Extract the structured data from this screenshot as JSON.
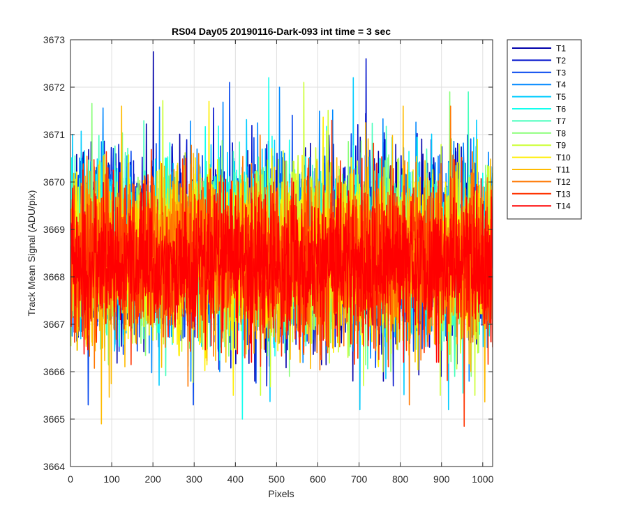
{
  "chart_data": {
    "type": "line",
    "title": "RS04 Day05 20190116-Dark-093 int time = 3 sec",
    "xlabel": "Pixels",
    "ylabel": "Track Mean Signal (ADU/pix)",
    "xlim": [
      0,
      1024
    ],
    "ylim": [
      3664,
      3673
    ],
    "xticks": [
      0,
      100,
      200,
      300,
      400,
      500,
      600,
      700,
      800,
      900,
      1000
    ],
    "yticks": [
      3664,
      3665,
      3666,
      3667,
      3668,
      3669,
      3670,
      3671,
      3672,
      3673
    ],
    "grid": true,
    "legend_position": "outside-top-right",
    "n_points": 1024,
    "series": [
      {
        "name": "T1",
        "color": "#0000aa",
        "mean": 3668.6,
        "std": 0.95,
        "max": 3672.75,
        "min": 3665.8
      },
      {
        "name": "T2",
        "color": "#0011cc",
        "mean": 3668.6,
        "std": 0.95,
        "max": 3672.6,
        "min": 3665.7
      },
      {
        "name": "T3",
        "color": "#0044ee",
        "mean": 3668.6,
        "std": 0.9,
        "max": 3672.1,
        "min": 3665.3
      },
      {
        "name": "T4",
        "color": "#0088ff",
        "mean": 3668.6,
        "std": 0.9,
        "max": 3672.0,
        "min": 3665.8
      },
      {
        "name": "T5",
        "color": "#00ccff",
        "mean": 3668.6,
        "std": 0.9,
        "max": 3672.2,
        "min": 3665.2
      },
      {
        "name": "T6",
        "color": "#11ffee",
        "mean": 3668.55,
        "std": 0.9,
        "max": 3672.2,
        "min": 3665.0
      },
      {
        "name": "T7",
        "color": "#44ffbb",
        "mean": 3668.5,
        "std": 0.9,
        "max": 3671.9,
        "min": 3665.9
      },
      {
        "name": "T8",
        "color": "#88ff77",
        "mean": 3668.5,
        "std": 0.9,
        "max": 3671.9,
        "min": 3665.9
      },
      {
        "name": "T9",
        "color": "#ccff33",
        "mean": 3668.5,
        "std": 0.9,
        "max": 3672.1,
        "min": 3665.5
      },
      {
        "name": "T10",
        "color": "#ffee00",
        "mean": 3668.45,
        "std": 0.9,
        "max": 3671.7,
        "min": 3665.5
      },
      {
        "name": "T11",
        "color": "#ffbb00",
        "mean": 3668.45,
        "std": 0.9,
        "max": 3671.6,
        "min": 3664.9
      },
      {
        "name": "T12",
        "color": "#ff7700",
        "mean": 3668.4,
        "std": 0.85,
        "max": 3671.6,
        "min": 3665.3
      },
      {
        "name": "T13",
        "color": "#ff3300",
        "mean": 3668.35,
        "std": 0.85,
        "max": 3671.3,
        "min": 3664.85
      },
      {
        "name": "T14",
        "color": "#ff0000",
        "mean": 3668.3,
        "std": 0.7,
        "max": 3670.5,
        "min": 3666.2
      }
    ]
  }
}
